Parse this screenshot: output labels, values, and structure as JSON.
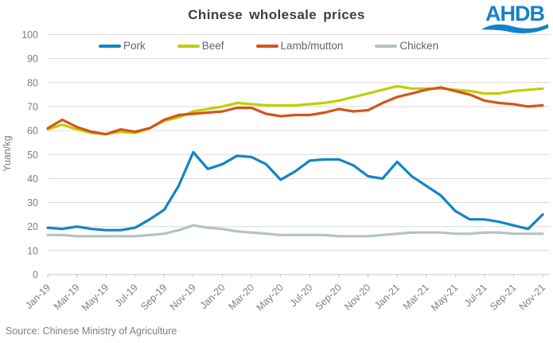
{
  "header": {
    "title": "Chinese wholesale prices",
    "logo_text": "AHDB",
    "logo_color": "#1482c8"
  },
  "chart_data": {
    "type": "line",
    "title": "Chinese wholesale prices",
    "xlabel": "",
    "ylabel": "Yuan/kg",
    "ylim": [
      0,
      100
    ],
    "ytick_step": 10,
    "grid": true,
    "legend_position": "top",
    "xtick_every": 2,
    "x": [
      "Jan-19",
      "Feb-19",
      "Mar-19",
      "Apr-19",
      "May-19",
      "Jun-19",
      "Jul-19",
      "Aug-19",
      "Sep-19",
      "Oct-19",
      "Nov-19",
      "Dec-19",
      "Jan-20",
      "Feb-20",
      "Mar-20",
      "Apr-20",
      "May-20",
      "Jun-20",
      "Jul-20",
      "Aug-20",
      "Sep-20",
      "Oct-20",
      "Nov-20",
      "Dec-20",
      "Jan-21",
      "Feb-21",
      "Mar-21",
      "Apr-21",
      "May-21",
      "Jun-21",
      "Jul-21",
      "Aug-21",
      "Sep-21",
      "Oct-21",
      "Nov-21"
    ],
    "series": [
      {
        "name": "Pork",
        "color": "#1284c7",
        "values": [
          19.5,
          19,
          20,
          19,
          18.5,
          18.5,
          19.5,
          23,
          27,
          37,
          51,
          44,
          46,
          49.5,
          49,
          46,
          39.5,
          43,
          47.5,
          48,
          48,
          45.5,
          41,
          40,
          47,
          41,
          37,
          33,
          26.5,
          23,
          23,
          22,
          20.5,
          19,
          25
        ]
      },
      {
        "name": "Beef",
        "color": "#bfcf00",
        "values": [
          60.5,
          62.5,
          60.5,
          59,
          58.5,
          59.5,
          59,
          61,
          64,
          65.5,
          68,
          69,
          70,
          71.5,
          71,
          70.5,
          70.5,
          70.5,
          71,
          71.5,
          72.5,
          74,
          75.5,
          77,
          78.5,
          77.5,
          77.5,
          77.5,
          77,
          76.5,
          75.5,
          75.5,
          76.5,
          77,
          77.5
        ]
      },
      {
        "name": "Lamb/mutton",
        "color": "#d4551a",
        "values": [
          61,
          64.5,
          61.5,
          59.5,
          58.5,
          60.5,
          59.5,
          61,
          64.5,
          66.5,
          67,
          67.5,
          68,
          69.5,
          69.5,
          67,
          66,
          66.5,
          66.5,
          67.5,
          69,
          68,
          68.5,
          71.5,
          74,
          75.5,
          77,
          78,
          76.5,
          75,
          72.5,
          71.5,
          71,
          70,
          70.5
        ]
      },
      {
        "name": "Chicken",
        "color": "#b3c2c9",
        "values": [
          16.5,
          16.5,
          16,
          16,
          16,
          16,
          16,
          16.5,
          17,
          18.5,
          20.5,
          19.5,
          19,
          18,
          17.5,
          17,
          16.5,
          16.5,
          16.5,
          16.5,
          16,
          16,
          16,
          16.5,
          17,
          17.5,
          17.5,
          17.5,
          17,
          17,
          17.5,
          17.5,
          17,
          17,
          17
        ]
      }
    ],
    "colors": {
      "grid": "#d9d9d9",
      "axis": "#c6c6c6",
      "tick_text": "#7f7f7f"
    }
  },
  "footer": {
    "source": "Source: Chinese Ministry of Agriculture"
  }
}
